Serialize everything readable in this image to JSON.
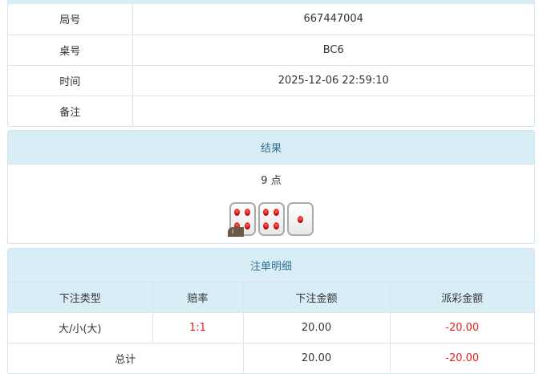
{
  "info": {
    "rows": [
      {
        "label": "局号",
        "value": "667447004"
      },
      {
        "label": "桌号",
        "value": "BC6"
      },
      {
        "label": "时间",
        "value": "2025-12-06 22:59:10"
      },
      {
        "label": "备注",
        "value": ""
      }
    ]
  },
  "result": {
    "title": "结果",
    "points": "9 点",
    "dice": [
      4,
      4,
      1
    ],
    "badge": "i"
  },
  "bets": {
    "title": "注单明细",
    "columns": [
      "下注类型",
      "赔率",
      "下注金额",
      "派彩金额"
    ],
    "rows": [
      {
        "type": "大/小(大)",
        "odds": "1:1",
        "amount": "20.00",
        "payout": "-20.00"
      }
    ],
    "total": {
      "label": "总计",
      "amount": "20.00",
      "payout": "-20.00"
    }
  },
  "colors": {
    "header_bg": "#d9edf7",
    "negative": "#e4201b"
  }
}
